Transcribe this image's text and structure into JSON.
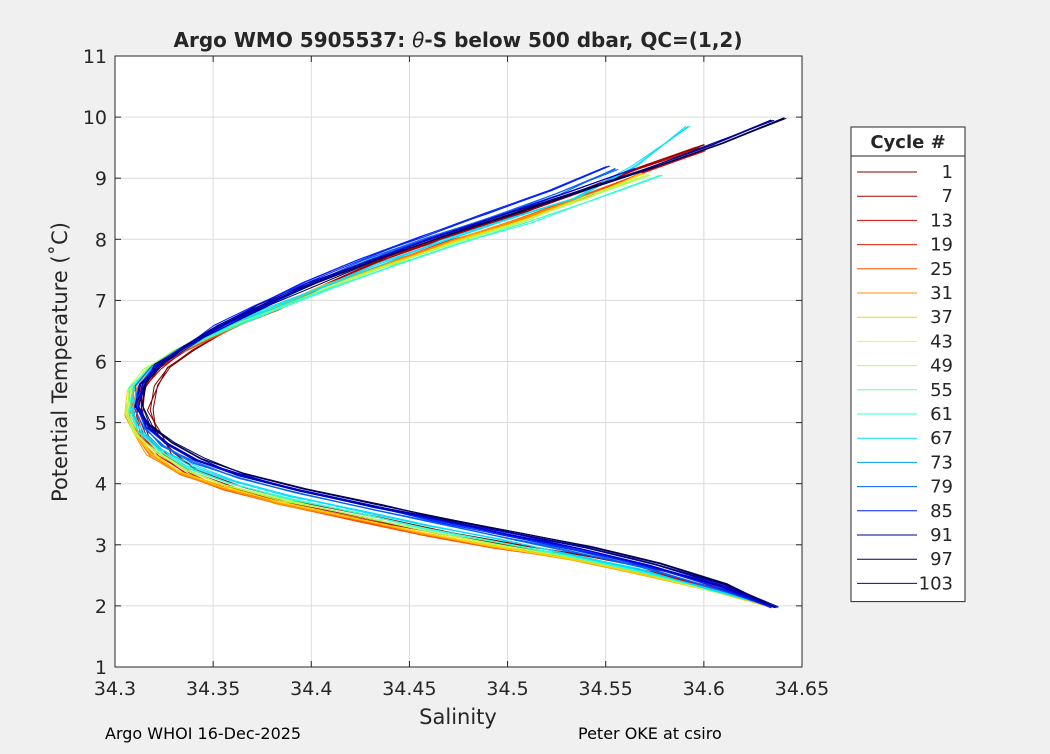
{
  "chart_data": {
    "type": "line",
    "title": "Argo WMO 5905537: θ-S below 500 dbar,  QC=(1,2)",
    "xlabel": "Salinity",
    "ylabel": "Potential Temperature (˚C)",
    "xlim": [
      34.3,
      34.65
    ],
    "ylim": [
      1,
      11
    ],
    "xticks": [
      "34.3",
      "34.35",
      "34.4",
      "34.45",
      "34.5",
      "34.55",
      "34.6",
      "34.65"
    ],
    "yticks": [
      "1",
      "2",
      "3",
      "4",
      "5",
      "6",
      "7",
      "8",
      "9",
      "10",
      "11"
    ],
    "grid": true,
    "legend": {
      "title": "Cycle #",
      "placement": "right-outside",
      "entries": [
        {
          "label": "1",
          "color": "#800000"
        },
        {
          "label": "7",
          "color": "#b00000"
        },
        {
          "label": "13",
          "color": "#e00000"
        },
        {
          "label": "19",
          "color": "#f01e00"
        },
        {
          "label": "25",
          "color": "#ff5000"
        },
        {
          "label": "31",
          "color": "#ff9000"
        },
        {
          "label": "37",
          "color": "#ffd000"
        },
        {
          "label": "43",
          "color": "#f0ff10"
        },
        {
          "label": "49",
          "color": "#b0ff50"
        },
        {
          "label": "55",
          "color": "#70ff90"
        },
        {
          "label": "61",
          "color": "#30ffd0"
        },
        {
          "label": "67",
          "color": "#00e0ff"
        },
        {
          "label": "73",
          "color": "#00a0ff"
        },
        {
          "label": "79",
          "color": "#0060ff"
        },
        {
          "label": "85",
          "color": "#0020ff"
        },
        {
          "label": "91",
          "color": "#000090"
        },
        {
          "label": "97",
          "color": "#000050"
        },
        {
          "label": "103",
          "color": "#0000cc"
        }
      ]
    },
    "series": [
      {
        "color": "#800000",
        "x": [
          34.636,
          34.615,
          34.58,
          34.545,
          34.505,
          34.47,
          34.435,
          34.395,
          34.365,
          34.343,
          34.33,
          34.322,
          34.318,
          34.32,
          34.327,
          34.34,
          34.36,
          34.385,
          34.41,
          34.44,
          34.47,
          34.505,
          34.54,
          34.57,
          34.6
        ],
        "y": [
          1.98,
          2.28,
          2.58,
          2.8,
          3.0,
          3.2,
          3.45,
          3.7,
          3.95,
          4.2,
          4.5,
          4.8,
          5.2,
          5.6,
          5.9,
          6.2,
          6.55,
          6.9,
          7.3,
          7.7,
          8.05,
          8.4,
          8.8,
          9.2,
          9.55
        ]
      },
      {
        "color": "#b00000",
        "x": [
          34.636,
          34.612,
          34.575,
          34.54,
          34.5,
          34.465,
          34.43,
          34.39,
          34.36,
          34.339,
          34.325,
          34.317,
          34.313,
          34.315,
          34.322,
          34.336,
          34.357,
          34.382,
          34.408,
          34.438,
          34.468,
          34.502,
          34.535,
          34.565,
          34.598
        ],
        "y": [
          1.98,
          2.25,
          2.55,
          2.78,
          2.98,
          3.18,
          3.42,
          3.68,
          3.93,
          4.18,
          4.48,
          4.78,
          5.15,
          5.55,
          5.88,
          6.18,
          6.52,
          6.88,
          7.28,
          7.68,
          8.02,
          8.38,
          8.75,
          9.15,
          9.5
        ]
      },
      {
        "color": "#e00000",
        "x": [
          34.636,
          34.61,
          34.572,
          34.536,
          34.497,
          34.462,
          34.427,
          34.388,
          34.358,
          34.337,
          34.322,
          34.315,
          34.311,
          34.313,
          34.32,
          34.334,
          34.356,
          34.382,
          34.408,
          34.44,
          34.472,
          34.508,
          34.54,
          34.57,
          34.6
        ],
        "y": [
          1.98,
          2.24,
          2.53,
          2.76,
          2.96,
          3.16,
          3.4,
          3.66,
          3.91,
          4.16,
          4.46,
          4.76,
          5.12,
          5.52,
          5.85,
          6.15,
          6.5,
          6.86,
          7.25,
          7.63,
          7.98,
          8.33,
          8.7,
          9.1,
          9.45
        ]
      },
      {
        "color": "#ff5000",
        "x": [
          34.636,
          34.608,
          34.57,
          34.534,
          34.495,
          34.46,
          34.425,
          34.386,
          34.356,
          34.335,
          34.32,
          34.313,
          34.309,
          34.311,
          34.319,
          34.333,
          34.355,
          34.38,
          34.407,
          34.438,
          34.47,
          34.505,
          34.538,
          34.568
        ],
        "y": [
          1.98,
          2.23,
          2.52,
          2.75,
          2.95,
          3.15,
          3.39,
          3.65,
          3.9,
          4.15,
          4.45,
          4.75,
          5.1,
          5.5,
          5.83,
          6.13,
          6.48,
          6.84,
          7.23,
          7.6,
          7.96,
          8.32,
          8.7,
          9.08
        ]
      },
      {
        "color": "#ff9000",
        "x": [
          34.636,
          34.606,
          34.568,
          34.532,
          34.493,
          34.458,
          34.423,
          34.384,
          34.354,
          34.333,
          34.318,
          34.311,
          34.307,
          34.309,
          34.317,
          34.332,
          34.354,
          34.38,
          34.407,
          34.44,
          34.472,
          34.508,
          34.54
        ],
        "y": [
          1.98,
          2.23,
          2.52,
          2.76,
          2.97,
          3.18,
          3.42,
          3.68,
          3.93,
          4.18,
          4.48,
          4.78,
          5.13,
          5.52,
          5.85,
          6.15,
          6.5,
          6.85,
          7.24,
          7.62,
          7.98,
          8.34,
          8.72
        ]
      },
      {
        "color": "#ffd000",
        "x": [
          34.636,
          34.605,
          34.567,
          34.531,
          34.492,
          34.457,
          34.422,
          34.384,
          34.354,
          34.333,
          34.318,
          34.31,
          34.306,
          34.308,
          34.316,
          34.331,
          34.353,
          34.379,
          34.407,
          34.44,
          34.473,
          34.508,
          34.54,
          34.57
        ],
        "y": [
          1.98,
          2.24,
          2.54,
          2.78,
          2.99,
          3.2,
          3.44,
          3.7,
          3.95,
          4.2,
          4.5,
          4.8,
          5.15,
          5.54,
          5.87,
          6.16,
          6.5,
          6.85,
          7.23,
          7.6,
          7.96,
          8.32,
          8.7,
          9.08
        ]
      },
      {
        "color": "#b0ff50",
        "x": [
          34.636,
          34.604,
          34.567,
          34.531,
          34.493,
          34.458,
          34.424,
          34.386,
          34.356,
          34.335,
          34.32,
          34.311,
          34.306,
          34.308,
          34.316,
          34.331,
          34.353,
          34.38,
          34.408,
          34.44,
          34.473,
          34.508,
          34.54,
          34.572
        ],
        "y": [
          1.98,
          2.26,
          2.56,
          2.8,
          3.02,
          3.23,
          3.47,
          3.73,
          3.98,
          4.23,
          4.53,
          4.82,
          5.17,
          5.56,
          5.88,
          6.17,
          6.5,
          6.84,
          7.21,
          7.58,
          7.94,
          8.3,
          8.68,
          9.06
        ]
      },
      {
        "color": "#30ffd0",
        "x": [
          34.636,
          34.603,
          34.566,
          34.53,
          34.494,
          34.46,
          34.426,
          34.388,
          34.358,
          34.337,
          34.322,
          34.312,
          34.307,
          34.309,
          34.317,
          34.332,
          34.354,
          34.381,
          34.41,
          34.442,
          34.475,
          34.51,
          34.545,
          34.578
        ],
        "y": [
          1.98,
          2.27,
          2.58,
          2.83,
          3.05,
          3.26,
          3.5,
          3.76,
          4.01,
          4.26,
          4.55,
          4.84,
          5.18,
          5.56,
          5.88,
          6.17,
          6.5,
          6.83,
          7.2,
          7.56,
          7.92,
          8.28,
          8.66,
          9.05
        ]
      },
      {
        "color": "#00e0ff",
        "x": [
          34.636,
          34.602,
          34.566,
          34.53,
          34.495,
          34.462,
          34.428,
          34.39,
          34.36,
          34.338,
          34.323,
          34.313,
          34.308,
          34.31,
          34.318,
          34.333,
          34.353,
          34.378,
          34.405,
          34.435,
          34.467,
          34.5,
          34.535,
          34.565,
          34.592
        ],
        "y": [
          1.98,
          2.28,
          2.6,
          2.86,
          3.09,
          3.3,
          3.54,
          3.8,
          4.05,
          4.3,
          4.58,
          4.86,
          5.2,
          5.58,
          5.9,
          6.2,
          6.52,
          6.86,
          7.22,
          7.6,
          7.96,
          8.32,
          8.68,
          9.2,
          9.85
        ]
      },
      {
        "color": "#0060ff",
        "x": [
          34.636,
          34.604,
          34.568,
          34.532,
          34.497,
          34.464,
          34.43,
          34.392,
          34.362,
          34.34,
          34.325,
          34.315,
          34.31,
          34.312,
          34.32,
          34.334,
          34.352,
          34.375,
          34.4,
          34.428,
          34.46,
          34.493,
          34.525,
          34.555
        ],
        "y": [
          1.98,
          2.3,
          2.63,
          2.9,
          3.13,
          3.35,
          3.59,
          3.85,
          4.1,
          4.35,
          4.62,
          4.9,
          5.23,
          5.6,
          5.92,
          6.22,
          6.55,
          6.9,
          7.27,
          7.65,
          8.02,
          8.38,
          8.75,
          9.15
        ]
      },
      {
        "color": "#0020ff",
        "x": [
          34.636,
          34.606,
          34.57,
          34.535,
          34.5,
          34.466,
          34.432,
          34.394,
          34.363,
          34.341,
          34.326,
          34.316,
          34.311,
          34.313,
          34.321,
          34.335,
          34.352,
          34.373,
          34.397,
          34.425,
          34.456,
          34.49,
          34.522,
          34.552
        ],
        "y": [
          1.98,
          2.32,
          2.66,
          2.93,
          3.16,
          3.38,
          3.62,
          3.88,
          4.13,
          4.38,
          4.65,
          4.92,
          5.25,
          5.62,
          5.94,
          6.24,
          6.58,
          6.93,
          7.3,
          7.68,
          8.05,
          8.42,
          8.8,
          9.2
        ]
      },
      {
        "color": "#000090",
        "x": [
          34.636,
          34.61,
          34.575,
          34.54,
          34.503,
          34.468,
          34.433,
          34.395,
          34.364,
          34.342,
          34.327,
          34.317,
          34.312,
          34.314,
          34.322,
          34.336,
          34.353,
          34.375,
          34.4,
          34.43,
          34.462,
          34.498,
          34.535,
          34.57,
          34.605,
          34.635
        ],
        "y": [
          1.98,
          2.35,
          2.68,
          2.95,
          3.18,
          3.4,
          3.63,
          3.89,
          4.14,
          4.39,
          4.66,
          4.93,
          5.26,
          5.63,
          5.95,
          6.25,
          6.58,
          6.92,
          7.28,
          7.65,
          8.02,
          8.4,
          8.78,
          9.15,
          9.55,
          9.95
        ]
      },
      {
        "color": "#000050",
        "x": [
          34.636,
          34.612,
          34.578,
          34.543,
          34.505,
          34.47,
          34.435,
          34.397,
          34.366,
          34.344,
          34.329,
          34.319,
          34.314,
          34.316,
          34.324,
          34.338,
          34.356,
          34.378,
          34.404,
          34.434,
          34.466,
          34.502,
          34.538,
          34.574,
          34.61,
          34.642
        ],
        "y": [
          1.98,
          2.36,
          2.7,
          2.97,
          3.2,
          3.42,
          3.65,
          3.91,
          4.16,
          4.41,
          4.68,
          4.95,
          5.28,
          5.65,
          5.97,
          6.27,
          6.6,
          6.94,
          7.3,
          7.67,
          8.04,
          8.42,
          8.8,
          9.17,
          9.58,
          9.98
        ]
      },
      {
        "color": "#0000cc",
        "x": [
          34.636,
          34.608,
          34.572,
          34.537,
          34.501,
          34.467,
          34.433,
          34.395,
          34.364,
          34.342,
          34.327,
          34.317,
          34.312,
          34.314,
          34.322,
          34.336,
          34.354,
          34.376,
          34.401,
          34.43,
          34.462,
          34.497,
          34.532,
          34.565
        ],
        "y": [
          1.98,
          2.33,
          2.67,
          2.94,
          3.17,
          3.39,
          3.63,
          3.89,
          4.14,
          4.39,
          4.66,
          4.93,
          5.26,
          5.63,
          5.95,
          6.25,
          6.58,
          6.92,
          7.29,
          7.66,
          8.03,
          8.4,
          8.78,
          9.16
        ]
      }
    ]
  },
  "footer": {
    "left": "Argo WHOI 16-Dec-2025",
    "right": "Peter OKE at csiro"
  }
}
